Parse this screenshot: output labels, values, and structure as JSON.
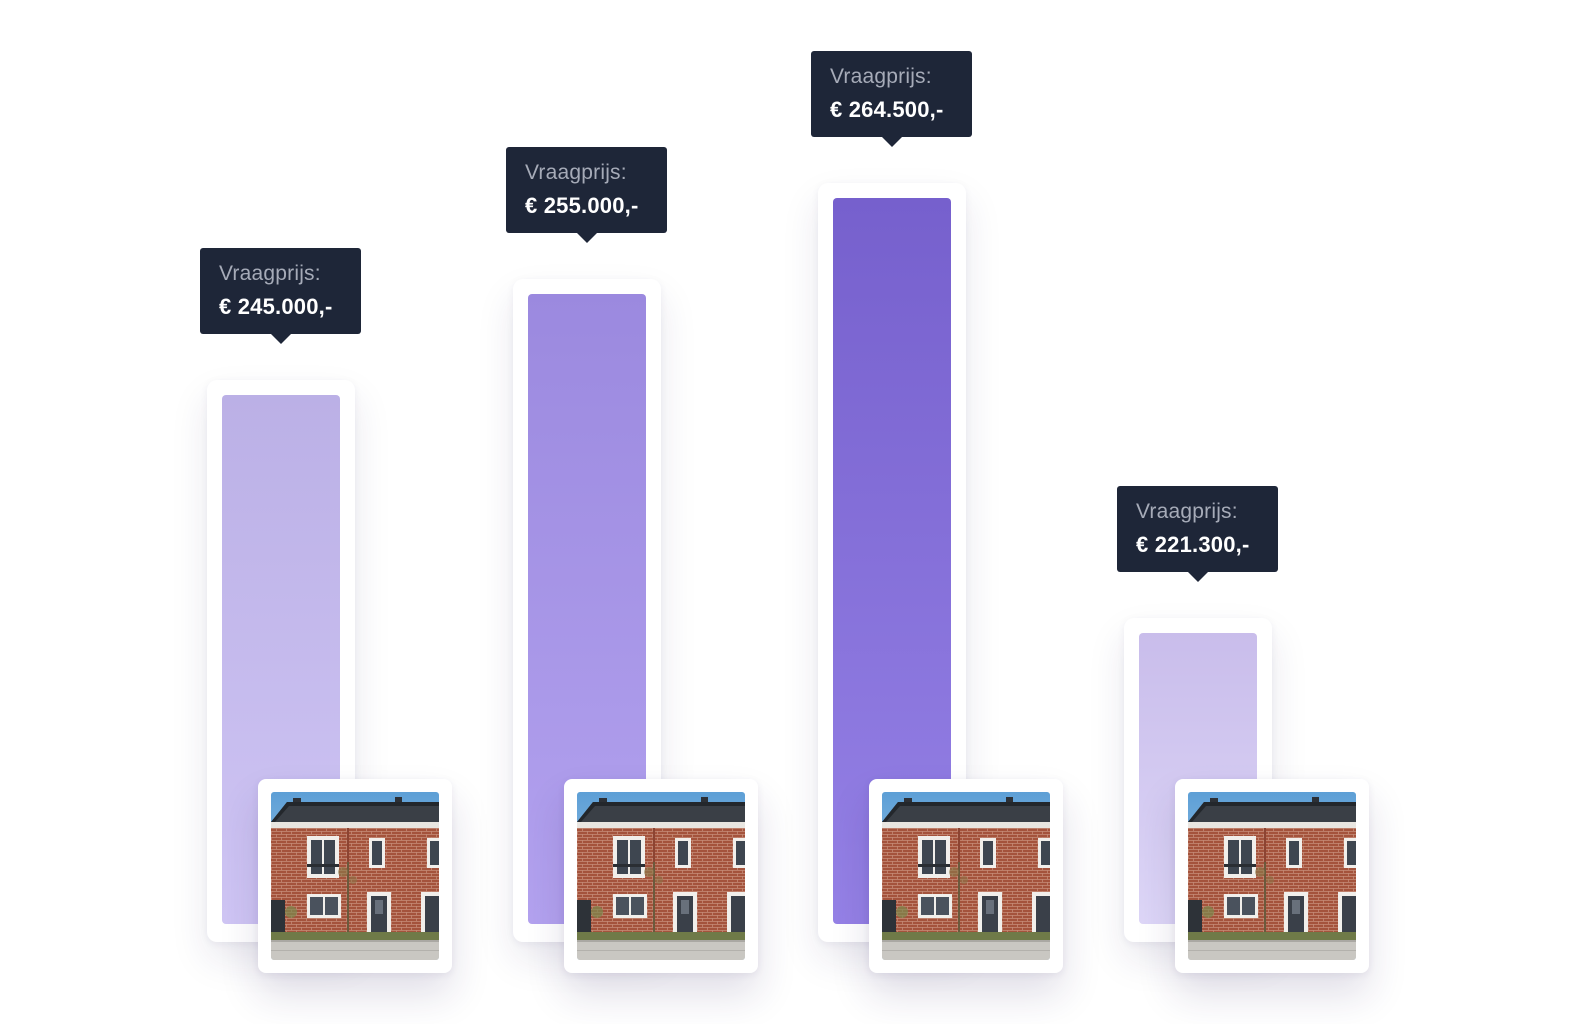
{
  "chart_data": {
    "type": "bar",
    "categories": [
      "",
      "",
      "",
      ""
    ],
    "series": [
      {
        "values": [
          245000,
          255000,
          264500,
          221300
        ]
      }
    ],
    "value_labels": [
      {
        "label": "Vraagprijs:",
        "price": "€ 245.000,-"
      },
      {
        "label": "Vraagprijs:",
        "price": "€ 255.000,-"
      },
      {
        "label": "Vraagprijs:",
        "price": "€ 264.500,-"
      },
      {
        "label": "Vraagprijs:",
        "price": "€ 221.300,-"
      }
    ],
    "bar_colors": [
      [
        "#bbb0e6",
        "#cfc5f4"
      ],
      [
        "#9b89df",
        "#b3a2ef"
      ],
      [
        "#7660cd",
        "#9581e6"
      ],
      [
        "#c9bdeb",
        "#ddd6f7"
      ]
    ],
    "ylim": [
      0,
      264500
    ],
    "grid": false,
    "legend": "none",
    "image_per_bar": "house-photo"
  }
}
